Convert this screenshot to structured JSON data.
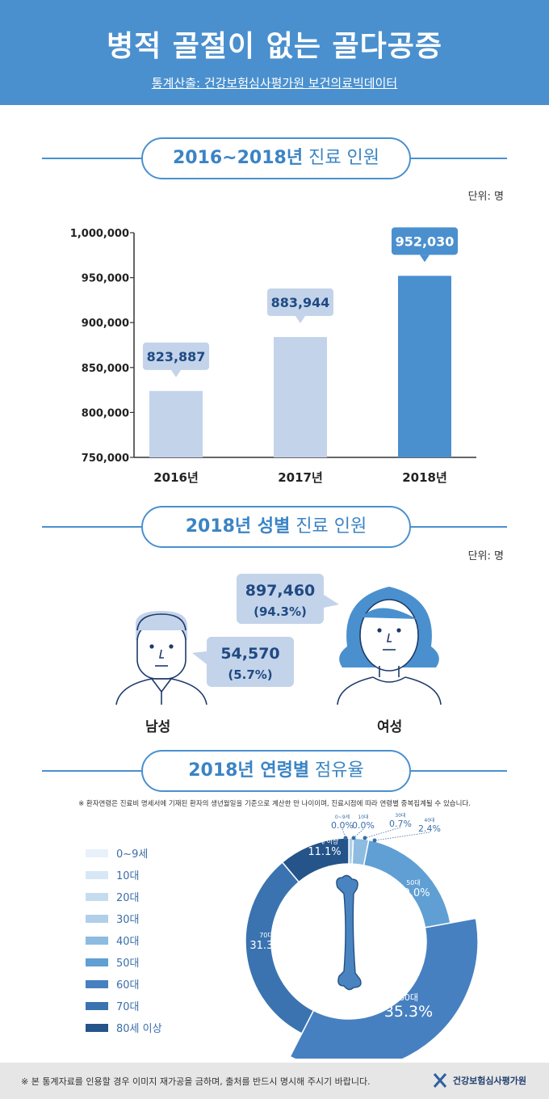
{
  "header": {
    "title": "병적 골절이 없는 골다공증",
    "source": "통계산출: 건강보험심사평가원 보건의료빅데이터"
  },
  "sections": {
    "yearly": {
      "bold": "2016~2018년",
      "rest": " 진료 인원"
    },
    "gender": {
      "bold": "2018년 성별",
      "rest": " 진료 인원"
    },
    "age": {
      "bold": "2018년 연령별",
      "rest": " 점유율"
    }
  },
  "unit_label": "단위: 명",
  "chart_data": [
    {
      "type": "bar",
      "categories": [
        "2016년",
        "2017년",
        "2018년"
      ],
      "values": [
        823887,
        883944,
        952030
      ],
      "value_labels": [
        "823,887",
        "883,944",
        "952,030"
      ],
      "ylim": [
        750000,
        1000000
      ],
      "yticks": [
        "750,000",
        "800,000",
        "850,000",
        "900,000",
        "950,000",
        "1,000,000"
      ],
      "colors": [
        "#c3d3ea",
        "#c3d3ea",
        "#4a90cf"
      ]
    },
    {
      "type": "pie",
      "labels": [
        "0~9세",
        "10대",
        "20대",
        "30대",
        "40대",
        "50대",
        "60대",
        "70대",
        "80세 이상"
      ],
      "values": [
        0.0,
        0.0,
        0.0,
        0.7,
        2.4,
        19.0,
        35.3,
        31.3,
        11.1
      ],
      "value_labels": [
        "0.0%",
        "0.0%",
        "",
        "0.7%",
        "2.4%",
        "19.0%",
        "35.3%",
        "31.3%",
        "11.1%"
      ],
      "slice_labels": [
        "0~9세",
        "10대",
        "",
        "30대",
        "40대",
        "50대",
        "60대",
        "70대",
        "80세 이상"
      ],
      "colors": [
        "#e8f1fa",
        "#d7e7f5",
        "#c5dcef",
        "#b0cfe8",
        "#8ebbe0",
        "#5f9fd4",
        "#4680c0",
        "#3a73b0",
        "#24548a"
      ]
    }
  ],
  "gender": {
    "female": {
      "value": "897,460",
      "pct": "(94.3%)",
      "label": "여성"
    },
    "male": {
      "value": "54,570",
      "pct": "(5.7%)",
      "label": "남성"
    }
  },
  "age_note": "※ 환자연령은 진료비 명세서에 기재된 환자의 생년월일을 기준으로 계산한 만 나이이며, 진료시점에 따라 연령별 중복집계될 수 있습니다.",
  "footer": {
    "notice": "※ 본 통계자료를 인용할 경우 이미지 재가공을 금하며, 출처를 반드시 명시해 주시기 바랍니다.",
    "logo_text": "건강보험심사평가원"
  }
}
